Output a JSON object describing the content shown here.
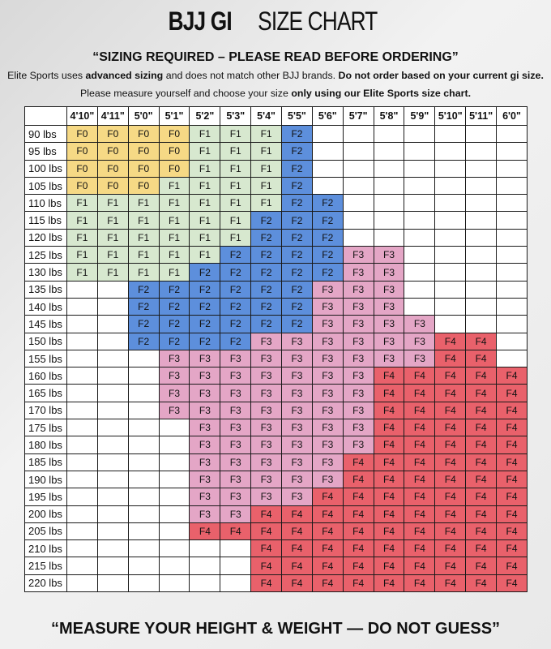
{
  "header": {
    "title_bold": "BJJ GI",
    "title_rest": "SIZE CHART",
    "subtitle": "“SIZING REQUIRED – PLEASE READ BEFORE ORDERING”",
    "notes": [
      [
        {
          "text": "Elite Sports uses ",
          "bold": false
        },
        {
          "text": "advanced sizing",
          "bold": true
        },
        {
          "text": " and does not match other BJJ brands. ",
          "bold": false
        },
        {
          "text": "Do not order based on your current gi size.",
          "bold": true
        }
      ],
      [
        {
          "text": "Please measure yourself and choose your size ",
          "bold": false
        },
        {
          "text": "only using our Elite Sports size chart.",
          "bold": true
        }
      ]
    ]
  },
  "table": {
    "columns": [
      "4'10\"",
      "4'11\"",
      "5'0\"",
      "5'1\"",
      "5'2\"",
      "5'3\"",
      "5'4\"",
      "5'5\"",
      "5'6\"",
      "5'7\"",
      "5'8\"",
      "5'9\"",
      "5'10\"",
      "5'11\"",
      "6'0\""
    ],
    "size_colors": {
      "F0": "#f6d985",
      "F1": "#d7e8cf",
      "F2": "#5d8fdc",
      "F3": "#e4a6c6",
      "F4": "#e9616b"
    },
    "rows": [
      {
        "label": "90 lbs",
        "cells": [
          "F0",
          "F0",
          "F0",
          "F0",
          "F1",
          "F1",
          "F1",
          "F2",
          null,
          null,
          null,
          null,
          null,
          null,
          null
        ]
      },
      {
        "label": "95 lbs",
        "cells": [
          "F0",
          "F0",
          "F0",
          "F0",
          "F1",
          "F1",
          "F1",
          "F2",
          null,
          null,
          null,
          null,
          null,
          null,
          null
        ]
      },
      {
        "label": "100 lbs",
        "cells": [
          "F0",
          "F0",
          "F0",
          "F0",
          "F1",
          "F1",
          "F1",
          "F2",
          null,
          null,
          null,
          null,
          null,
          null,
          null
        ]
      },
      {
        "label": "105 lbs",
        "cells": [
          "F0",
          "F0",
          "F0",
          "F1",
          "F1",
          "F1",
          "F1",
          "F2",
          null,
          null,
          null,
          null,
          null,
          null,
          null
        ]
      },
      {
        "label": "110 lbs",
        "cells": [
          "F1",
          "F1",
          "F1",
          "F1",
          "F1",
          "F1",
          "F1",
          "F2",
          "F2",
          null,
          null,
          null,
          null,
          null,
          null
        ]
      },
      {
        "label": "115 lbs",
        "cells": [
          "F1",
          "F1",
          "F1",
          "F1",
          "F1",
          "F1",
          "F2",
          "F2",
          "F2",
          null,
          null,
          null,
          null,
          null,
          null
        ]
      },
      {
        "label": "120 lbs",
        "cells": [
          "F1",
          "F1",
          "F1",
          "F1",
          "F1",
          "F1",
          "F2",
          "F2",
          "F2",
          null,
          null,
          null,
          null,
          null,
          null
        ]
      },
      {
        "label": "125 lbs",
        "cells": [
          "F1",
          "F1",
          "F1",
          "F1",
          "F1",
          "F2",
          "F2",
          "F2",
          "F2",
          "F3",
          "F3",
          null,
          null,
          null,
          null
        ]
      },
      {
        "label": "130 lbs",
        "cells": [
          "F1",
          "F1",
          "F1",
          "F1",
          "F2",
          "F2",
          "F2",
          "F2",
          "F2",
          "F3",
          "F3",
          null,
          null,
          null,
          null
        ]
      },
      {
        "label": "135 lbs",
        "cells": [
          null,
          null,
          "F2",
          "F2",
          "F2",
          "F2",
          "F2",
          "F2",
          "F3",
          "F3",
          "F3",
          null,
          null,
          null,
          null
        ]
      },
      {
        "label": "140 lbs",
        "cells": [
          null,
          null,
          "F2",
          "F2",
          "F2",
          "F2",
          "F2",
          "F2",
          "F3",
          "F3",
          "F3",
          null,
          null,
          null,
          null
        ]
      },
      {
        "label": "145 lbs",
        "cells": [
          null,
          null,
          "F2",
          "F2",
          "F2",
          "F2",
          "F2",
          "F2",
          "F3",
          "F3",
          "F3",
          "F3",
          null,
          null,
          null
        ]
      },
      {
        "label": "150 lbs",
        "cells": [
          null,
          null,
          "F2",
          "F2",
          "F2",
          "F2",
          "F3",
          "F3",
          "F3",
          "F3",
          "F3",
          "F3",
          "F4",
          "F4",
          null
        ]
      },
      {
        "label": "155 lbs",
        "cells": [
          null,
          null,
          null,
          "F3",
          "F3",
          "F3",
          "F3",
          "F3",
          "F3",
          "F3",
          "F3",
          "F3",
          "F4",
          "F4",
          null
        ]
      },
      {
        "label": "160 lbs",
        "cells": [
          null,
          null,
          null,
          "F3",
          "F3",
          "F3",
          "F3",
          "F3",
          "F3",
          "F3",
          "F4",
          "F4",
          "F4",
          "F4",
          "F4"
        ]
      },
      {
        "label": "165 lbs",
        "cells": [
          null,
          null,
          null,
          "F3",
          "F3",
          "F3",
          "F3",
          "F3",
          "F3",
          "F3",
          "F4",
          "F4",
          "F4",
          "F4",
          "F4"
        ]
      },
      {
        "label": "170 lbs",
        "cells": [
          null,
          null,
          null,
          "F3",
          "F3",
          "F3",
          "F3",
          "F3",
          "F3",
          "F3",
          "F4",
          "F4",
          "F4",
          "F4",
          "F4"
        ]
      },
      {
        "label": "175 lbs",
        "cells": [
          null,
          null,
          null,
          null,
          "F3",
          "F3",
          "F3",
          "F3",
          "F3",
          "F3",
          "F4",
          "F4",
          "F4",
          "F4",
          "F4"
        ]
      },
      {
        "label": "180 lbs",
        "cells": [
          null,
          null,
          null,
          null,
          "F3",
          "F3",
          "F3",
          "F3",
          "F3",
          "F3",
          "F4",
          "F4",
          "F4",
          "F4",
          "F4"
        ]
      },
      {
        "label": "185 lbs",
        "cells": [
          null,
          null,
          null,
          null,
          "F3",
          "F3",
          "F3",
          "F3",
          "F3",
          "F4",
          "F4",
          "F4",
          "F4",
          "F4",
          "F4"
        ]
      },
      {
        "label": "190 lbs",
        "cells": [
          null,
          null,
          null,
          null,
          "F3",
          "F3",
          "F3",
          "F3",
          "F3",
          "F4",
          "F4",
          "F4",
          "F4",
          "F4",
          "F4"
        ]
      },
      {
        "label": "195 lbs",
        "cells": [
          null,
          null,
          null,
          null,
          "F3",
          "F3",
          "F3",
          "F3",
          "F4",
          "F4",
          "F4",
          "F4",
          "F4",
          "F4",
          "F4"
        ]
      },
      {
        "label": "200 lbs",
        "cells": [
          null,
          null,
          null,
          null,
          "F3",
          "F3",
          "F4",
          "F4",
          "F4",
          "F4",
          "F4",
          "F4",
          "F4",
          "F4",
          "F4"
        ]
      },
      {
        "label": "205 lbs",
        "cells": [
          null,
          null,
          null,
          null,
          "F4",
          "F4",
          "F4",
          "F4",
          "F4",
          "F4",
          "F4",
          "F4",
          "F4",
          "F4",
          "F4"
        ]
      },
      {
        "label": "210 lbs",
        "cells": [
          null,
          null,
          null,
          null,
          null,
          null,
          "F4",
          "F4",
          "F4",
          "F4",
          "F4",
          "F4",
          "F4",
          "F4",
          "F4"
        ]
      },
      {
        "label": "215 lbs",
        "cells": [
          null,
          null,
          null,
          null,
          null,
          null,
          "F4",
          "F4",
          "F4",
          "F4",
          "F4",
          "F4",
          "F4",
          "F4",
          "F4"
        ]
      },
      {
        "label": "220 lbs",
        "cells": [
          null,
          null,
          null,
          null,
          null,
          null,
          "F4",
          "F4",
          "F4",
          "F4",
          "F4",
          "F4",
          "F4",
          "F4",
          "F4"
        ]
      }
    ]
  },
  "footer": "“MEASURE YOUR HEIGHT & WEIGHT — DO NOT GUESS”"
}
